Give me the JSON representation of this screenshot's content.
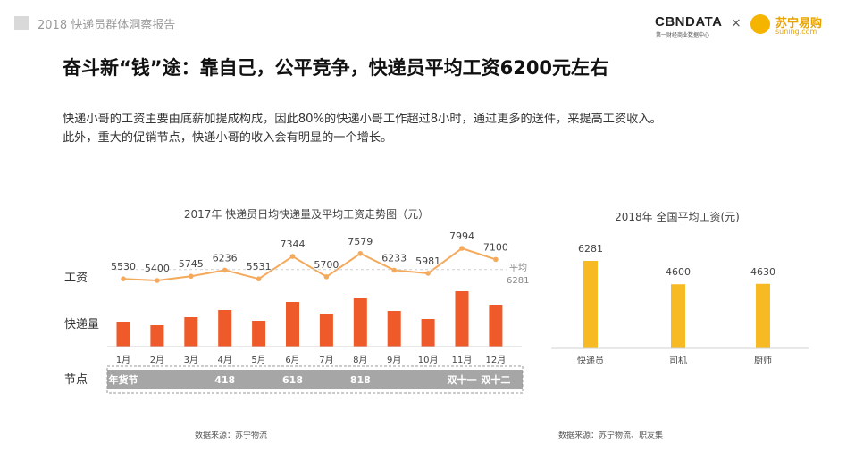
{
  "header": {
    "report": "2018 快递员群体洞察报告",
    "logo_cbn": "CBNDATA",
    "logo_cbn_sub": "第一财经商业数据中心",
    "logo_x": "×",
    "logo_suning": "苏宁易购",
    "logo_suning_url": "suning.com"
  },
  "title": "奋斗新“钱”途：靠自己，公平竞争，快递员平均工资6200元左右",
  "description": [
    "快递小哥的工资主要由底薪加提成构成，因此80%的快递小哥工作超过8小时，通过更多的送件，来提高工资收入。",
    "此外，重大的促销节点，快递小哥的收入会有明显的一个增长。"
  ],
  "colors": {
    "line": "#f5a95b",
    "bar": "#ee5a2a",
    "bar2": "#f7b924",
    "band": "#a6a6a6"
  },
  "chart_data": [
    {
      "type": "bar",
      "title": "2017年 快递员日均快递量及平均工资走势图（元）",
      "row_labels": [
        "工资",
        "快递量",
        "节点"
      ],
      "categories": [
        "1月",
        "2月",
        "3月",
        "4月",
        "5月",
        "6月",
        "7月",
        "8月",
        "9月",
        "10月",
        "11月",
        "12月"
      ],
      "series": [
        {
          "name": "工资",
          "type": "line",
          "values": [
            5530,
            5400,
            5745,
            6236,
            5531,
            7344,
            5700,
            7579,
            6233,
            5981,
            7994,
            7100
          ]
        },
        {
          "name": "快递量",
          "type": "bar",
          "values": [
            28,
            24,
            33,
            41,
            29,
            50,
            37,
            54,
            40,
            31,
            62,
            47
          ]
        }
      ],
      "reference": {
        "label": "平均",
        "value": 6281
      },
      "nodes": [
        {
          "label": "年货节",
          "month": 1
        },
        {
          "label": "418",
          "month": 4
        },
        {
          "label": "618",
          "month": 6
        },
        {
          "label": "818",
          "month": 8
        },
        {
          "label": "双十一",
          "month": 11
        },
        {
          "label": "双十二",
          "month": 12
        }
      ],
      "source": "数据来源：苏宁物流"
    },
    {
      "type": "bar",
      "title": "2018年 全国平均工资(元)",
      "categories": [
        "快递员",
        "司机",
        "厨师"
      ],
      "values": [
        6281,
        4600,
        4630
      ],
      "source": "数据来源：苏宁物流、职友集"
    }
  ]
}
